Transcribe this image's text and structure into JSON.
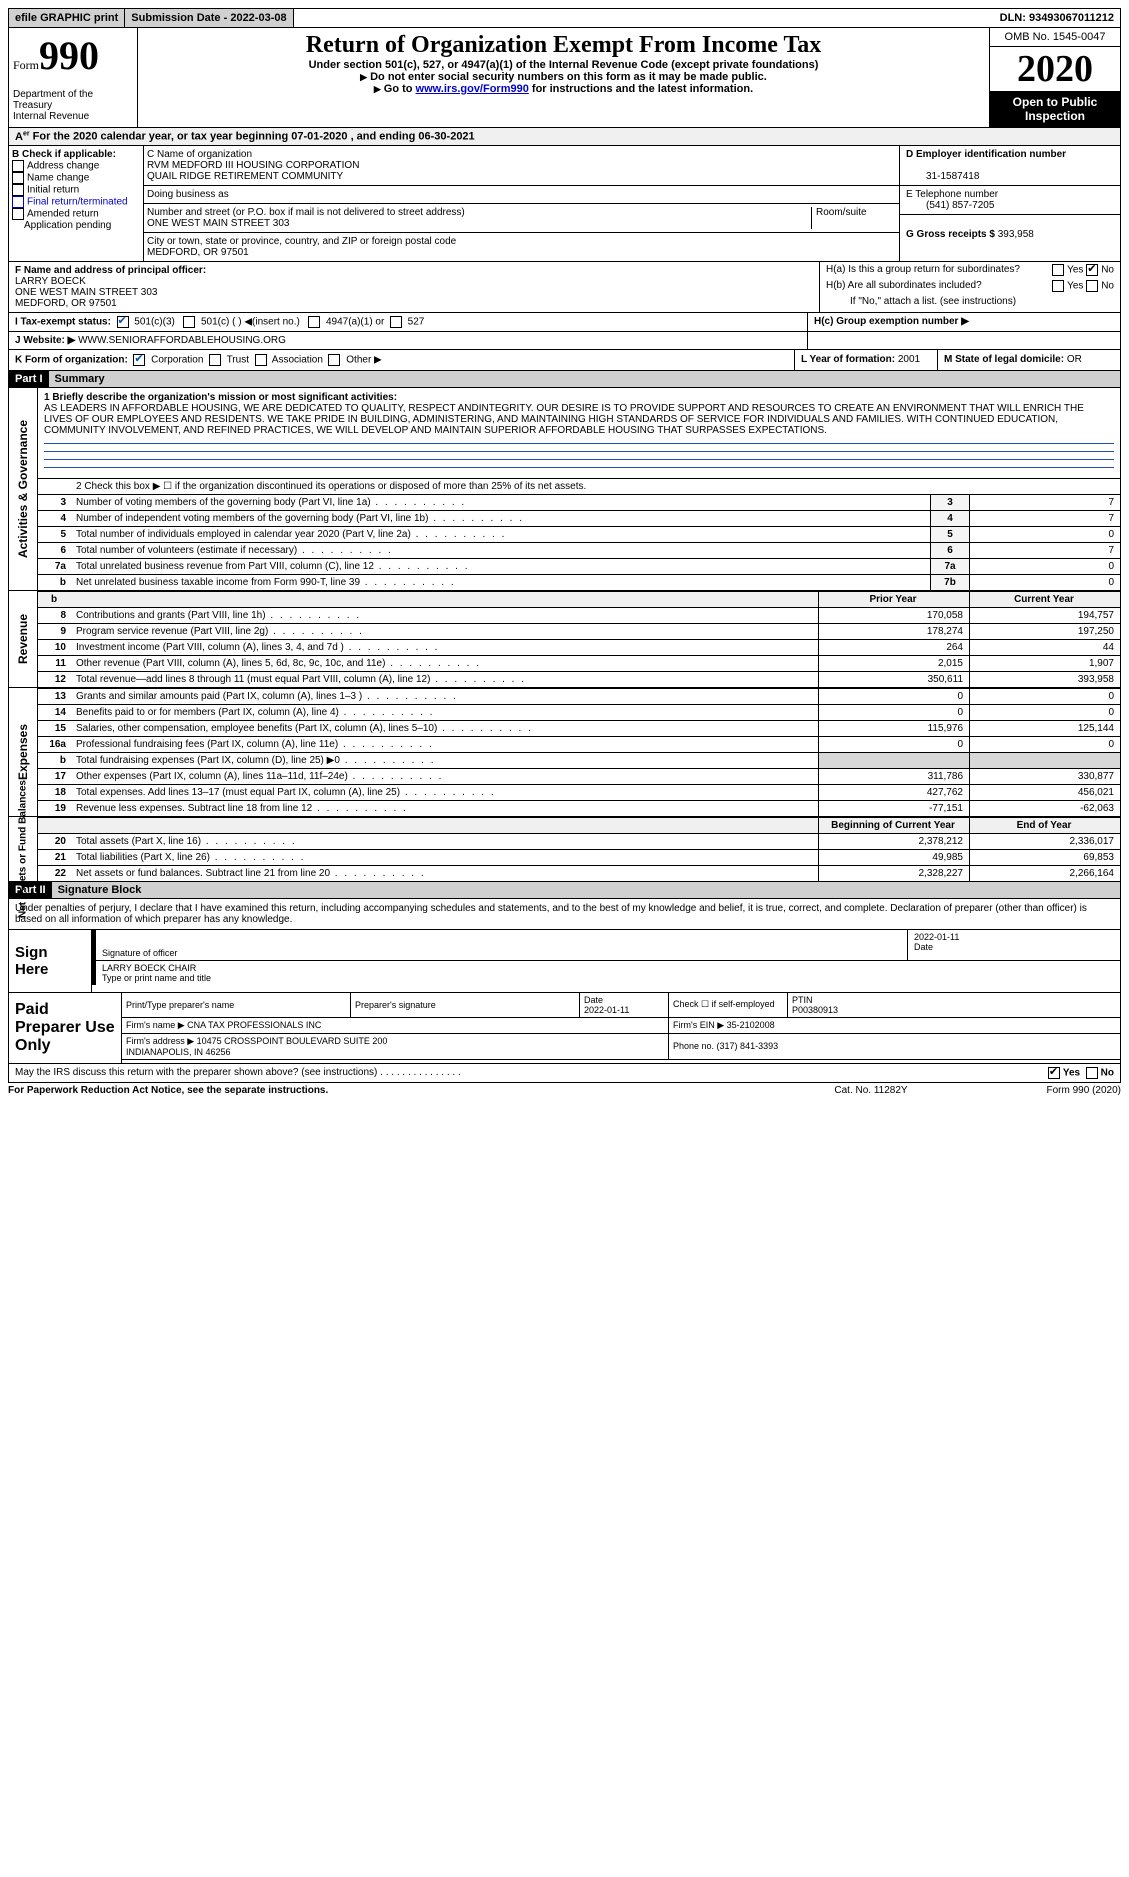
{
  "topbar": {
    "efile": "efile GRAPHIC print",
    "subdate_label": "Submission Date - ",
    "subdate": "2022-03-08",
    "dln_label": "DLN: ",
    "dln": "93493067011212"
  },
  "header": {
    "form_word": "Form",
    "form_num": "990",
    "dept1": "Department of the Treasury",
    "dept2": "Internal Revenue",
    "title": "Return of Organization Exempt From Income Tax",
    "sub1": "Under section 501(c), 527, or 4947(a)(1) of the Internal Revenue Code (except private foundations)",
    "sub2": "Do not enter social security numbers on this form as it may be made public.",
    "sub3a": "Go to ",
    "sub3link": "www.irs.gov/Form990",
    "sub3b": " for instructions and the latest information.",
    "omb": "OMB No. 1545-0047",
    "year": "2020",
    "openpub": "Open to Public Inspection"
  },
  "rowA": {
    "text": "For the 2020 calendar year, or tax year beginning 07-01-2020   , and ending 06-30-2021"
  },
  "boxB": {
    "label": "B Check if applicable:",
    "items": [
      "Address change",
      "Name change",
      "Initial return",
      "Final return/terminated",
      "Amended return",
      "Application pending"
    ]
  },
  "boxC": {
    "name_label": "C Name of organization",
    "name1": "RVM MEDFORD III HOUSING CORPORATION",
    "name2": "QUAIL RIDGE RETIREMENT COMMUNITY",
    "dba_label": "Doing business as",
    "addr_label": "Number and street (or P.O. box if mail is not delivered to street address)",
    "room_label": "Room/suite",
    "addr": "ONE WEST MAIN STREET 303",
    "city_label": "City or town, state or province, country, and ZIP or foreign postal code",
    "city": "MEDFORD, OR  97501"
  },
  "boxD": {
    "label": "D Employer identification number",
    "val": "31-1587418"
  },
  "boxE": {
    "label": "E Telephone number",
    "val": "(541) 857-7205"
  },
  "boxG": {
    "label": "G Gross receipts $ ",
    "val": "393,958"
  },
  "boxF": {
    "label": "F  Name and address of principal officer:",
    "name": "LARRY BOECK",
    "addr1": "ONE WEST MAIN STREET 303",
    "addr2": "MEDFORD, OR  97501"
  },
  "boxH": {
    "a": "H(a)  Is this a group return for subordinates?",
    "b": "H(b)  Are all subordinates included?",
    "note": "If \"No,\" attach a list. (see instructions)",
    "c": "H(c)  Group exemption number ▶",
    "yes": "Yes",
    "no": "No"
  },
  "rowI": {
    "label": "I    Tax-exempt status:",
    "o1": "501(c)(3)",
    "o2": "501(c) (  ) ◀(insert no.)",
    "o3": "4947(a)(1) or",
    "o4": "527"
  },
  "rowJ": {
    "label": "J   Website: ▶",
    "val": "WWW.SENIORAFFORDABLEHOUSING.ORG"
  },
  "rowK": {
    "label": "K Form of organization:",
    "o1": "Corporation",
    "o2": "Trust",
    "o3": "Association",
    "o4": "Other ▶",
    "L": "L Year of formation: ",
    "Lval": "2001",
    "M": "M State of legal domicile: ",
    "Mval": "OR"
  },
  "part1": {
    "hdr": "Part I",
    "title": "Summary",
    "side_gov": "Activities & Governance",
    "side_rev": "Revenue",
    "side_exp": "Expenses",
    "side_net": "Net Assets or Fund Balances",
    "q1label": "1   Briefly describe the organization's mission or most significant activities:",
    "mission": "AS LEADERS IN AFFORDABLE HOUSING, WE ARE DEDICATED TO QUALITY, RESPECT ANDINTEGRITY. OUR DESIRE IS TO PROVIDE SUPPORT AND RESOURCES TO CREATE AN ENVIRONMENT THAT WILL ENRICH THE LIVES OF OUR EMPLOYEES AND RESIDENTS. WE TAKE PRIDE IN BUILDING, ADMINISTERING, AND MAINTAINING HIGH STANDARDS OF SERVICE FOR INDIVIDUALS AND FAMILIES. WITH CONTINUED EDUCATION, COMMUNITY INVOLVEMENT, AND REFINED PRACTICES, WE WILL DEVELOP AND MAINTAIN SUPERIOR AFFORDABLE HOUSING THAT SURPASSES EXPECTATIONS.",
    "q2": "2    Check this box ▶ ☐  if the organization discontinued its operations or disposed of more than 25% of its net assets.",
    "rows_gov": [
      {
        "n": "3",
        "t": "Number of voting members of the governing body (Part VI, line 1a)",
        "k": "3",
        "v": "7"
      },
      {
        "n": "4",
        "t": "Number of independent voting members of the governing body (Part VI, line 1b)",
        "k": "4",
        "v": "7"
      },
      {
        "n": "5",
        "t": "Total number of individuals employed in calendar year 2020 (Part V, line 2a)",
        "k": "5",
        "v": "0"
      },
      {
        "n": "6",
        "t": "Total number of volunteers (estimate if necessary)",
        "k": "6",
        "v": "7"
      },
      {
        "n": "7a",
        "t": "Total unrelated business revenue from Part VIII, column (C), line 12",
        "k": "7a",
        "v": "0"
      },
      {
        "n": "b",
        "t": "Net unrelated business taxable income from Form 990-T, line 39",
        "k": "7b",
        "v": "0"
      }
    ],
    "hdr_prior": "Prior Year",
    "hdr_curr": "Current Year",
    "rows_rev": [
      {
        "n": "8",
        "t": "Contributions and grants (Part VIII, line 1h)",
        "p": "170,058",
        "c": "194,757"
      },
      {
        "n": "9",
        "t": "Program service revenue (Part VIII, line 2g)",
        "p": "178,274",
        "c": "197,250"
      },
      {
        "n": "10",
        "t": "Investment income (Part VIII, column (A), lines 3, 4, and 7d )",
        "p": "264",
        "c": "44"
      },
      {
        "n": "11",
        "t": "Other revenue (Part VIII, column (A), lines 5, 6d, 8c, 9c, 10c, and 11e)",
        "p": "2,015",
        "c": "1,907"
      },
      {
        "n": "12",
        "t": "Total revenue—add lines 8 through 11 (must equal Part VIII, column (A), line 12)",
        "p": "350,611",
        "c": "393,958"
      }
    ],
    "rows_exp": [
      {
        "n": "13",
        "t": "Grants and similar amounts paid (Part IX, column (A), lines 1–3 )",
        "p": "0",
        "c": "0"
      },
      {
        "n": "14",
        "t": "Benefits paid to or for members (Part IX, column (A), line 4)",
        "p": "0",
        "c": "0"
      },
      {
        "n": "15",
        "t": "Salaries, other compensation, employee benefits (Part IX, column (A), lines 5–10)",
        "p": "115,976",
        "c": "125,144"
      },
      {
        "n": "16a",
        "t": "Professional fundraising fees (Part IX, column (A), line 11e)",
        "p": "0",
        "c": "0"
      },
      {
        "n": "b",
        "t": "Total fundraising expenses (Part IX, column (D), line 25) ▶0",
        "p": "",
        "c": "",
        "shade": true
      },
      {
        "n": "17",
        "t": "Other expenses (Part IX, column (A), lines 11a–11d, 11f–24e)",
        "p": "311,786",
        "c": "330,877"
      },
      {
        "n": "18",
        "t": "Total expenses. Add lines 13–17 (must equal Part IX, column (A), line 25)",
        "p": "427,762",
        "c": "456,021"
      },
      {
        "n": "19",
        "t": "Revenue less expenses. Subtract line 18 from line 12",
        "p": "-77,151",
        "c": "-62,063"
      }
    ],
    "hdr_beg": "Beginning of Current Year",
    "hdr_end": "End of Year",
    "rows_net": [
      {
        "n": "20",
        "t": "Total assets (Part X, line 16)",
        "p": "2,378,212",
        "c": "2,336,017"
      },
      {
        "n": "21",
        "t": "Total liabilities (Part X, line 26)",
        "p": "49,985",
        "c": "69,853"
      },
      {
        "n": "22",
        "t": "Net assets or fund balances. Subtract line 21 from line 20",
        "p": "2,328,227",
        "c": "2,266,164"
      }
    ]
  },
  "part2": {
    "hdr": "Part II",
    "title": "Signature Block",
    "decl": "Under penalties of perjury, I declare that I have examined this return, including accompanying schedules and statements, and to the best of my knowledge and belief, it is true, correct, and complete. Declaration of preparer (other than officer) is based on all information of which preparer has any knowledge.",
    "sign_here": "Sign Here",
    "sig_officer": "Signature of officer",
    "date_label": "Date",
    "sig_date": "2022-01-11",
    "name_title": "LARRY BOECK  CHAIR",
    "type_label": "Type or print name and title",
    "paid": "Paid Preparer Use Only",
    "p_name_label": "Print/Type preparer's name",
    "p_sig_label": "Preparer's signature",
    "p_date_label": "Date",
    "p_date": "2022-01-11",
    "p_check": "Check ☐ if self-employed",
    "ptin_label": "PTIN",
    "ptin": "P00380913",
    "firm_name_label": "Firm's name    ▶ ",
    "firm_name": "CNA TAX PROFESSIONALS INC",
    "firm_ein_label": "Firm's EIN ▶ ",
    "firm_ein": "35-2102008",
    "firm_addr_label": "Firm's address ▶ ",
    "firm_addr": "10475 CROSSPOINT BOULEVARD SUITE 200\nINDIANAPOLIS, IN  46256",
    "phone_label": "Phone no. ",
    "phone": "(317) 841-3393",
    "may_irs": "May the IRS discuss this return with the preparer shown above? (see instructions)",
    "yes": "Yes",
    "no": "No"
  },
  "footer": {
    "paperwork": "For Paperwork Reduction Act Notice, see the separate instructions.",
    "cat": "Cat. No. 11282Y",
    "form": "Form 990 (2020)"
  }
}
